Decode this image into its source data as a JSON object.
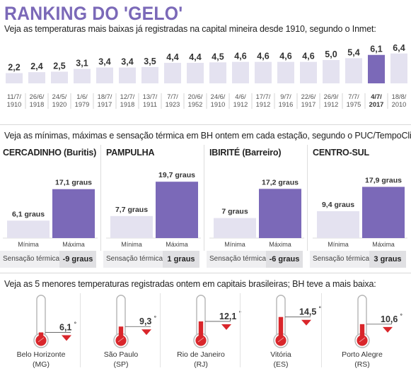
{
  "title": "RANKING DO 'GELO'",
  "ranking": {
    "intro": "Veja as temperaturas mais baixas já registradas na capital mineira desde 1910, segundo o Inmet:",
    "chart_data": {
      "type": "bar",
      "highlight_index": 16,
      "highlight_color": "#7b69b8",
      "bar_color": "#e4e2f0",
      "items": [
        {
          "value": "2,2",
          "v": 2.2,
          "date": "11/7/",
          "year": "1910"
        },
        {
          "value": "2,4",
          "v": 2.4,
          "date": "26/6/",
          "year": "1918"
        },
        {
          "value": "2,5",
          "v": 2.5,
          "date": "24/5/",
          "year": "1920"
        },
        {
          "value": "3,1",
          "v": 3.1,
          "date": "1/6/",
          "year": "1979"
        },
        {
          "value": "3,4",
          "v": 3.4,
          "date": "18/7/",
          "year": "1917"
        },
        {
          "value": "3,4",
          "v": 3.4,
          "date": "12/7/",
          "year": "1918"
        },
        {
          "value": "3,5",
          "v": 3.5,
          "date": "13/7/",
          "year": "1911"
        },
        {
          "value": "4,4",
          "v": 4.4,
          "date": "7/7/",
          "year": "1923"
        },
        {
          "value": "4,4",
          "v": 4.4,
          "date": "20/6/",
          "year": "1952"
        },
        {
          "value": "4,5",
          "v": 4.5,
          "date": "24/6/",
          "year": "1910"
        },
        {
          "value": "4,6",
          "v": 4.6,
          "date": "4/6/",
          "year": "1912"
        },
        {
          "value": "4,6",
          "v": 4.6,
          "date": "17/7/",
          "year": "1912"
        },
        {
          "value": "4,6",
          "v": 4.6,
          "date": "9/7/",
          "year": "1916"
        },
        {
          "value": "4,6",
          "v": 4.6,
          "date": "22/6/",
          "year": "1917"
        },
        {
          "value": "5,0",
          "v": 5.0,
          "date": "26/9/",
          "year": "1912"
        },
        {
          "value": "5,4",
          "v": 5.4,
          "date": "7/7/",
          "year": "1975"
        },
        {
          "value": "6,1",
          "v": 6.1,
          "date": "4/7/",
          "year": "2017"
        },
        {
          "value": "6,4",
          "v": 6.4,
          "date": "18/8/",
          "year": "2010"
        }
      ]
    }
  },
  "stations": {
    "intro": "Veja as mínimas, máximas e sensação térmica em BH ontem em cada estação, segundo o PUC/TempoClima:",
    "min_label": "Mínima",
    "max_label": "Máxima",
    "sens_label": "Sensação térmica",
    "min_color": "#e4e2f0",
    "max_color": "#7b69b8",
    "chart_data": [
      {
        "type": "bar",
        "name": "CERCADINHO (Buritis)",
        "min": 6.1,
        "max": 17.1,
        "min_text": "6,1 graus",
        "max_text": "17,1 graus",
        "sensation": "-9 graus"
      },
      {
        "type": "bar",
        "name": "PAMPULHA",
        "min": 7.7,
        "max": 19.7,
        "min_text": "7,7 graus",
        "max_text": "19,7 graus",
        "sensation": "1 graus"
      },
      {
        "type": "bar",
        "name": "IBIRITÉ (Barreiro)",
        "min": 7.0,
        "max": 17.2,
        "min_text": "7 graus",
        "max_text": "17,2 graus",
        "sensation": "-6 graus"
      },
      {
        "type": "bar",
        "name": "CENTRO-SUL",
        "min": 9.4,
        "max": 17.9,
        "min_text": "9,4 graus",
        "max_text": "17,9 graus",
        "sensation": "3 graus"
      }
    ]
  },
  "capitals": {
    "intro": "Veja as 5 menores temperaturas registradas ontem em capitais brasileiras; BH teve a mais baixa:",
    "degree_symbol": "°",
    "thermometer_color": "#d9262b",
    "arrow_color": "#d9262b",
    "items": [
      {
        "name": "Belo Horizonte",
        "uf": "(MG)",
        "temp": "6,1",
        "v": 6.1
      },
      {
        "name": "São Paulo",
        "uf": "(SP)",
        "temp": "9,3",
        "v": 9.3
      },
      {
        "name": "Rio de Janeiro",
        "uf": "(RJ)",
        "temp": "12,1",
        "v": 12.1
      },
      {
        "name": "Vitória",
        "uf": "(ES)",
        "temp": "14,5",
        "v": 14.5
      },
      {
        "name": "Porto Alegre",
        "uf": "(RS)",
        "temp": "10,6",
        "v": 10.6
      }
    ]
  }
}
